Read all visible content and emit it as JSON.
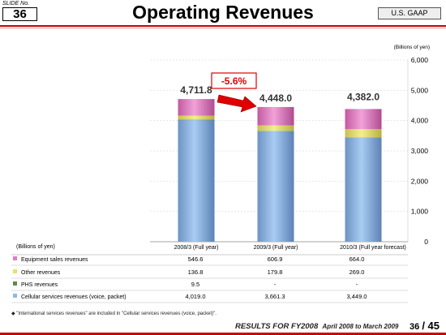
{
  "slide_label": "SLIDE No.",
  "slide_number": "36",
  "title": "Operating Revenues",
  "gaap_badge": "U.S. GAAP",
  "unit_top": "(Billions of yen)",
  "unit_table": "(Billions of yen)",
  "change_badge": "-5.6%",
  "note": "\"International services revenues\" are included in \"Cellular services revenues (voice, packet)\".",
  "footer": {
    "results": "RESULTS FOR FY2008",
    "period": "April 2008 to March 2009",
    "page": "36",
    "total": "/ 45"
  },
  "colors": {
    "cellular": "#8fb8e8",
    "phs": "#5f8a45",
    "other": "#e8e070",
    "equipment": "#e47bc2",
    "accent_red": "#e00000"
  },
  "chart_data": {
    "type": "bar",
    "stacked": true,
    "categories": [
      "2008/3 (Full year)",
      "2009/3 (Full year)",
      "2010/3 (Full year forecast)"
    ],
    "totals": [
      "4,711.8",
      "4,448.0",
      "4,382.0"
    ],
    "series": [
      {
        "name": "Cellular services revenues (voice, packet)",
        "values": [
          4019.0,
          3661.3,
          3449.0
        ],
        "labels": [
          "4,019.0",
          "3,661.3",
          "3,449.0"
        ],
        "color": "#8fb8e8"
      },
      {
        "name": "PHS revenues",
        "values": [
          9.5,
          0,
          0
        ],
        "labels": [
          "9.5",
          "-",
          "-"
        ],
        "color": "#5f8a45"
      },
      {
        "name": "Other revenues",
        "values": [
          136.8,
          179.8,
          269.0
        ],
        "labels": [
          "136.8",
          "179.8",
          "269.0"
        ],
        "color": "#e8e070"
      },
      {
        "name": "Equipment sales revenues",
        "values": [
          546.6,
          606.9,
          664.0
        ],
        "labels": [
          "546.6",
          "606.9",
          "664.0"
        ],
        "color": "#e47bc2"
      }
    ],
    "ylim": [
      0,
      6000
    ],
    "yticks": [
      "0",
      "1,000",
      "2,000",
      "3,000",
      "4,000",
      "5,000",
      "6,000"
    ],
    "ytick_values": [
      0,
      1000,
      2000,
      3000,
      4000,
      5000,
      6000
    ],
    "grid": true
  }
}
